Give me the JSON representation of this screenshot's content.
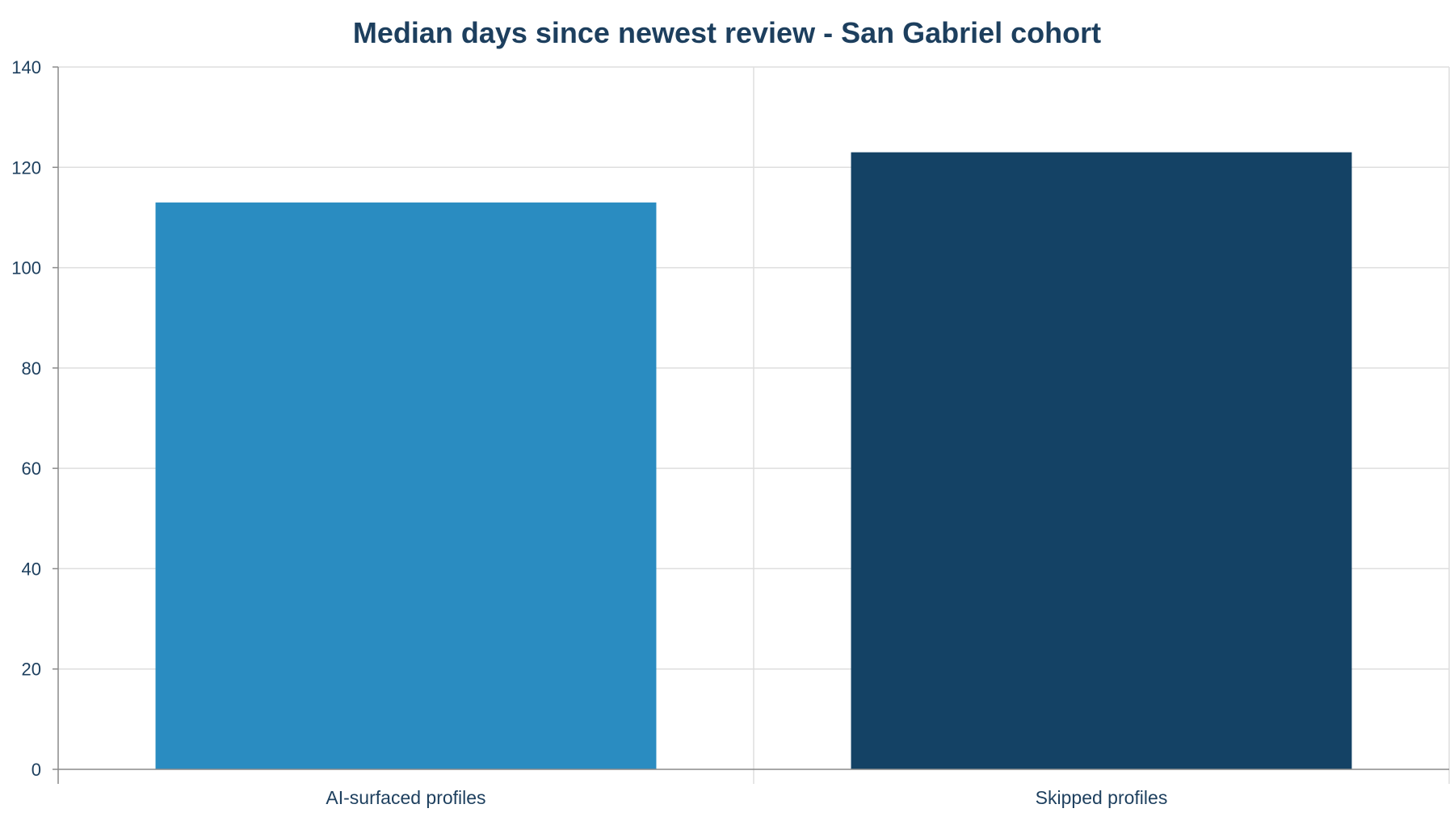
{
  "chart_data": {
    "type": "bar",
    "title": "Median days since newest review - San Gabriel cohort",
    "categories": [
      "AI-surfaced profiles",
      "Skipped profiles"
    ],
    "values": [
      113,
      123
    ],
    "bar_colors": [
      "#2a8cc1",
      "#144265"
    ],
    "ylim": [
      0,
      140
    ],
    "yticks": [
      "0",
      "20",
      "40",
      "60",
      "80",
      "100",
      "120",
      "140"
    ],
    "grid": true,
    "legend": "none"
  },
  "colors": {
    "text": "#1d3f5e",
    "grid": "#dedede",
    "axis": "#8a8a8a"
  }
}
